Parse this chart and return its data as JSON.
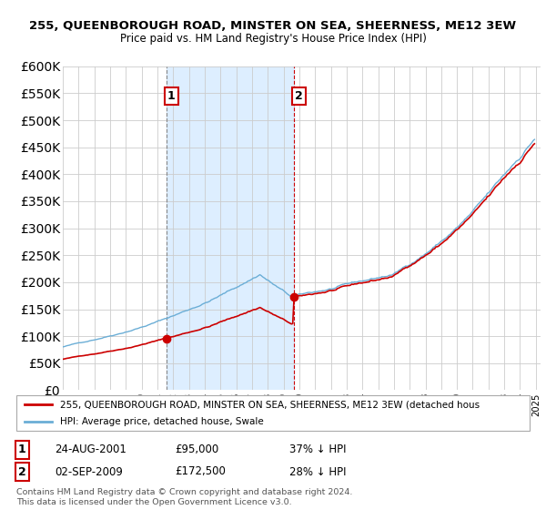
{
  "title": "255, QUEENBOROUGH ROAD, MINSTER ON SEA, SHEERNESS, ME12 3EW",
  "subtitle": "Price paid vs. HM Land Registry's House Price Index (HPI)",
  "sale1_date": "24-AUG-2001",
  "sale1_price": 95000,
  "sale2_date": "02-SEP-2009",
  "sale2_price": 172500,
  "sale1_hpi_pct": "37% ↓ HPI",
  "sale2_hpi_pct": "28% ↓ HPI",
  "legend_line1": "255, QUEENBOROUGH ROAD, MINSTER ON SEA, SHEERNESS, ME12 3EW (detached hous",
  "legend_line2": "HPI: Average price, detached house, Swale",
  "footnote": "Contains HM Land Registry data © Crown copyright and database right 2024.\nThis data is licensed under the Open Government Licence v3.0.",
  "hpi_color": "#6baed6",
  "price_color": "#cc0000",
  "shade_color": "#ddeeff",
  "ylim": [
    0,
    600000
  ],
  "yticks": [
    0,
    50000,
    100000,
    150000,
    200000,
    250000,
    300000,
    350000,
    400000,
    450000,
    500000,
    550000,
    600000
  ],
  "background_color": "#ffffff",
  "grid_color": "#cccccc"
}
